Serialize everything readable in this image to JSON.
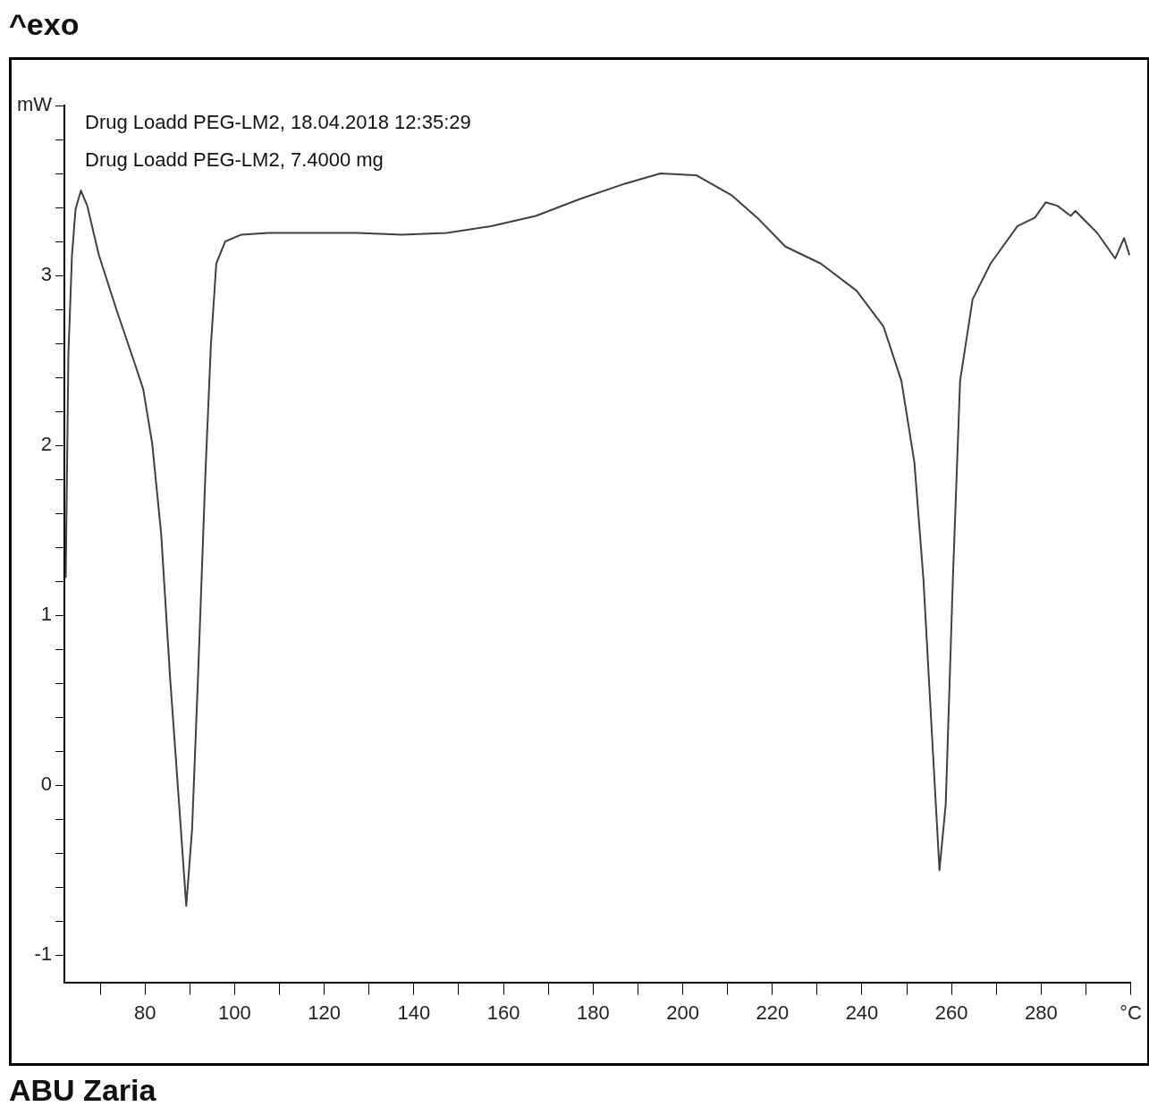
{
  "chart_data": {
    "type": "line",
    "annotations": [
      "^exo",
      "Drug Loadd PEG-LM2, 18.04.2018 12:35:29",
      "Drug Loadd PEG-LM2, 7.4000 mg",
      "ABU Zaria"
    ],
    "xlim": [
      62,
      300
    ],
    "ylim": [
      -1.16,
      4.0
    ],
    "xticks": [
      {
        "value": 70,
        "label": null
      },
      80,
      {
        "value": 90,
        "label": null
      },
      100,
      {
        "value": 110,
        "label": null
      },
      120,
      {
        "value": 130,
        "label": null
      },
      140,
      {
        "value": 150,
        "label": null
      },
      160,
      {
        "value": 170,
        "label": null
      },
      180,
      {
        "value": 190,
        "label": null
      },
      200,
      {
        "value": 210,
        "label": null
      },
      220,
      {
        "value": 230,
        "label": null
      },
      240,
      {
        "value": 250,
        "label": null
      },
      260,
      {
        "value": 270,
        "label": null
      },
      280,
      {
        "value": 290,
        "label": null
      },
      {
        "value": 300,
        "label": "°C"
      }
    ],
    "yticks": [
      {
        "value": -1,
        "label": "-1"
      },
      {
        "value": -0.8,
        "label": null
      },
      {
        "value": -0.6,
        "label": null
      },
      {
        "value": -0.4,
        "label": null
      },
      {
        "value": -0.2,
        "label": null
      },
      0,
      {
        "value": 0.2,
        "label": null
      },
      {
        "value": 0.4,
        "label": null
      },
      {
        "value": 0.6,
        "label": null
      },
      {
        "value": 0.8,
        "label": null
      },
      1,
      {
        "value": 1.2,
        "label": null
      },
      {
        "value": 1.4,
        "label": null
      },
      {
        "value": 1.6,
        "label": null
      },
      {
        "value": 1.8,
        "label": null
      },
      2,
      {
        "value": 2.2,
        "label": null
      },
      {
        "value": 2.4,
        "label": null
      },
      {
        "value": 2.6,
        "label": null
      },
      {
        "value": 2.8,
        "label": null
      },
      3,
      {
        "value": 3.2,
        "label": null
      },
      {
        "value": 3.4,
        "label": null
      },
      {
        "value": 3.6,
        "label": null
      },
      {
        "value": 3.8,
        "label": null
      },
      {
        "value": 4,
        "label": "mW"
      }
    ],
    "grid": false,
    "legend": false,
    "marker": "none",
    "line_style": "solid",
    "series": [
      {
        "color": "#404040",
        "x": [
          62.3,
          62.9,
          63.7,
          64.5,
          65.7,
          67.1,
          69.7,
          73.6,
          77.6,
          79.6,
          81.6,
          83.6,
          85.6,
          87.6,
          89.2,
          90.5,
          91.9,
          93.5,
          94.7,
          95.9,
          97.9,
          101.5,
          107.5,
          127.4,
          137.3,
          147.3,
          157.2,
          167.2,
          177.1,
          187.1,
          195.0,
          203.0,
          211.0,
          217.0,
          222.9,
          230.8,
          238.8,
          244.8,
          248.8,
          251.7,
          253.7,
          255.7,
          257.3,
          258.7,
          260.3,
          261.9,
          264.7,
          268.7,
          274.7,
          278.6,
          281.0,
          283.6,
          286.6,
          287.6,
          292.5,
          296.5,
          298.5,
          299.7
        ],
        "values": [
          1.22,
          2.54,
          3.12,
          3.39,
          3.5,
          3.41,
          3.12,
          2.8,
          2.49,
          2.33,
          2.01,
          1.48,
          0.63,
          -0.11,
          -0.71,
          -0.26,
          0.69,
          1.85,
          2.59,
          3.07,
          3.2,
          3.24,
          3.25,
          3.25,
          3.24,
          3.25,
          3.29,
          3.35,
          3.45,
          3.54,
          3.6,
          3.59,
          3.47,
          3.33,
          3.17,
          3.07,
          2.91,
          2.7,
          2.38,
          1.9,
          1.22,
          0.26,
          -0.5,
          -0.11,
          1.22,
          2.38,
          2.86,
          3.07,
          3.29,
          3.34,
          3.43,
          3.41,
          3.35,
          3.38,
          3.25,
          3.1,
          3.22,
          3.12
        ]
      }
    ]
  }
}
